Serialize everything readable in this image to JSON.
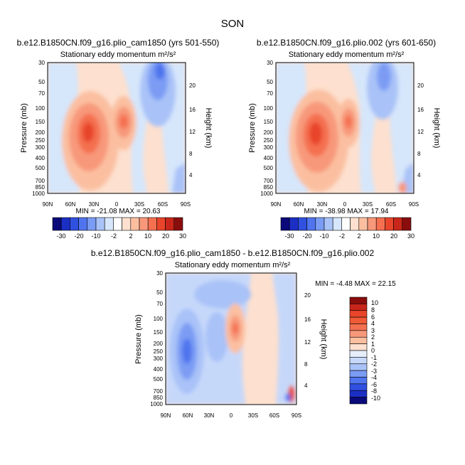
{
  "page_title": "SON",
  "chart_data": [
    {
      "type": "heatmap",
      "title": "b.e12.B1850CN.f09_g16.plio_cam1850 (yrs 501-550)",
      "subtitle": "Stationary eddy momentum m²/s²",
      "xlabel": "",
      "ylabel": "Pressure (mb)",
      "ylabel_right": "Height (km)",
      "x_ticks": [
        "90N",
        "60N",
        "30N",
        "0",
        "30S",
        "60S",
        "90S"
      ],
      "y_ticks": [
        "30",
        "50",
        "70",
        "100",
        "150",
        "200",
        "250",
        "300",
        "400",
        "500",
        "700",
        "850",
        "1000"
      ],
      "y_ticks_right": [
        "20",
        "16",
        "12",
        "8",
        "4"
      ],
      "stats": "MIN = -21.08   MAX = 20.63",
      "colorbar_labels": [
        "-30",
        "-20",
        "-10",
        "-2",
        "2",
        "10",
        "20",
        "30"
      ],
      "colorbar_colors": [
        "#0a0a7a",
        "#1c2fc4",
        "#3050e0",
        "#4f74ee",
        "#7b9cf4",
        "#a9c2f8",
        "#d6e6fb",
        "#ffffff",
        "#fde0cf",
        "#fbbfa0",
        "#f8987a",
        "#f47050",
        "#e8452b",
        "#c8261a",
        "#8a0d0d"
      ]
    },
    {
      "type": "heatmap",
      "title": "b.e12.B1850CN.f09_g16.plio.002 (yrs 601-650)",
      "subtitle": "Stationary eddy momentum m²/s²",
      "xlabel": "",
      "ylabel": "Pressure (mb)",
      "ylabel_right": "Height (km)",
      "x_ticks": [
        "90N",
        "60N",
        "30N",
        "0",
        "30S",
        "60S",
        "90S"
      ],
      "y_ticks": [
        "30",
        "50",
        "70",
        "100",
        "150",
        "200",
        "250",
        "300",
        "400",
        "500",
        "700",
        "850",
        "1000"
      ],
      "y_ticks_right": [
        "20",
        "16",
        "12",
        "8",
        "4"
      ],
      "stats": "MIN = -38.98   MAX = 17.94",
      "colorbar_labels": [
        "-30",
        "-20",
        "-10",
        "-2",
        "2",
        "10",
        "20",
        "30"
      ],
      "colorbar_colors": [
        "#0a0a7a",
        "#1c2fc4",
        "#3050e0",
        "#4f74ee",
        "#7b9cf4",
        "#a9c2f8",
        "#d6e6fb",
        "#ffffff",
        "#fde0cf",
        "#fbbfa0",
        "#f8987a",
        "#f47050",
        "#e8452b",
        "#c8261a",
        "#8a0d0d"
      ]
    },
    {
      "type": "heatmap",
      "title": "b.e12.B1850CN.f09_g16.plio_cam1850 - b.e12.B1850CN.f09_g16.plio.002",
      "subtitle": "Stationary eddy momentum m²/s²",
      "xlabel": "",
      "ylabel": "Pressure (mb)",
      "ylabel_right": "Height (km)",
      "x_ticks": [
        "90N",
        "60N",
        "30N",
        "0",
        "30S",
        "60S",
        "90S"
      ],
      "y_ticks": [
        "30",
        "50",
        "70",
        "100",
        "150",
        "200",
        "250",
        "300",
        "400",
        "500",
        "700",
        "850",
        "1000"
      ],
      "y_ticks_right": [
        "20",
        "16",
        "12",
        "8",
        "4"
      ],
      "stats": "MIN = -4.48   MAX = 22.15",
      "colorbar_labels": [
        "10",
        "8",
        "6",
        "4",
        "3",
        "2",
        "1",
        "0",
        "-1",
        "-2",
        "-3",
        "-4",
        "-6",
        "-8",
        "-10"
      ],
      "colorbar_colors": [
        "#8a0d0d",
        "#c8261a",
        "#e8452b",
        "#f05a36",
        "#f47050",
        "#f8987a",
        "#fbbfa0",
        "#fde0cf",
        "#e6eefc",
        "#c6d8fa",
        "#a9c2f8",
        "#7b9cf4",
        "#4f74ee",
        "#3050e0",
        "#1c2fc4",
        "#0a0a7a"
      ]
    }
  ]
}
